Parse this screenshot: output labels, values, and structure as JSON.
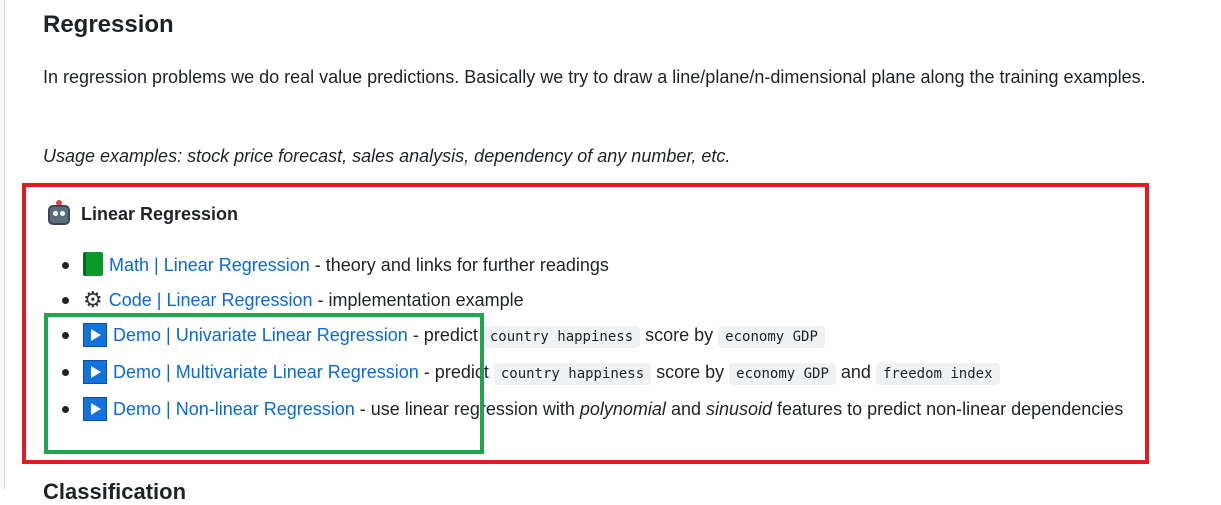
{
  "heading": "Regression",
  "intro": "In regression problems we do real value predictions. Basically we try to draw a line/plane/n-dimensional plane along the training examples.",
  "usage": "Usage examples: stock price forecast, sales analysis, dependency of any number, etc.",
  "algorithm": {
    "title": "Linear Regression",
    "icon": "robot-icon"
  },
  "items": [
    {
      "icon": "book-icon",
      "link": "Math | Linear Regression",
      "text": " - theory and links for further readings"
    },
    {
      "icon": "gear-icon",
      "link": "Code | Linear Regression",
      "text": " - implementation example"
    },
    {
      "icon": "play-icon",
      "link": "Demo | Univariate Linear Regression",
      "pre": " - predict ",
      "code1": "country happiness",
      "mid": " score by ",
      "code2": "economy GDP"
    },
    {
      "icon": "play-icon",
      "link": "Demo | Multivariate Linear Regression",
      "pre": " - predict ",
      "code1": "country happiness",
      "mid": " score by ",
      "code2": "economy GDP",
      "mid2": " and ",
      "code3": "freedom index"
    },
    {
      "icon": "play-icon",
      "link": "Demo | Non-linear Regression",
      "pre": " - use linear regression with ",
      "em1": "polynomial",
      "mid": " and ",
      "em2": "sinusoid",
      "post": " features to predict non-linear dependencies"
    }
  ],
  "next_heading_cut": "Classification",
  "colors": {
    "link": "#0969da",
    "red_box": "#e21b23",
    "green_box": "#1ea64a"
  }
}
